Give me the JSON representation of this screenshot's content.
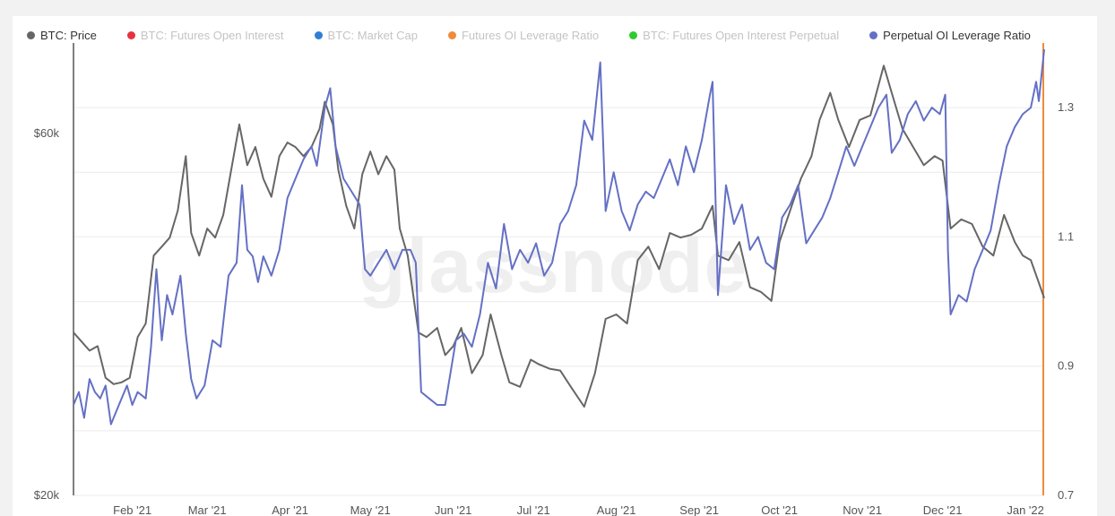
{
  "watermark": "glassnode",
  "legend": [
    {
      "label": "BTC: Price",
      "color": "#666666",
      "active": true
    },
    {
      "label": "BTC: Futures Open Interest",
      "color": "#e8313f",
      "active": false
    },
    {
      "label": "BTC: Market Cap",
      "color": "#2f7ed8",
      "active": false
    },
    {
      "label": "Futures OI Leverage Ratio",
      "color": "#f08a3c",
      "active": false
    },
    {
      "label": "BTC: Futures Open Interest Perpetual",
      "color": "#2ecc2e",
      "active": false
    },
    {
      "label": "Perpetual OI Leverage Ratio",
      "color": "#6470c4",
      "active": true
    }
  ],
  "chart_data": {
    "type": "line",
    "title": "",
    "x_ticks": [
      "Feb '21",
      "Mar '21",
      "Apr '21",
      "May '21",
      "Jun '21",
      "Jul '21",
      "Aug '21",
      "Sep '21",
      "Oct '21",
      "Nov '21",
      "Dec '21",
      "Jan '22"
    ],
    "x_range": [
      "2021-01-10",
      "2022-01-08"
    ],
    "left_axis": {
      "ticks": [
        "$20k",
        "$60k"
      ],
      "range": [
        20000,
        70000
      ],
      "scale": "linear",
      "series": "BTC: Price"
    },
    "right_axis": {
      "ticks": [
        "0.7",
        "0.9",
        "1.1",
        "1.3"
      ],
      "range": [
        0.7,
        1.4
      ],
      "scale": "linear",
      "series": "Perpetual OI Leverage Ratio"
    },
    "grid": true,
    "legend_position": "top",
    "series": [
      {
        "name": "BTC: Price",
        "color": "#666666",
        "axis": "left",
        "points": [
          [
            "2021-01-10",
            38000
          ],
          [
            "2021-01-13",
            37000
          ],
          [
            "2021-01-16",
            36000
          ],
          [
            "2021-01-19",
            36500
          ],
          [
            "2021-01-22",
            33000
          ],
          [
            "2021-01-25",
            32300
          ],
          [
            "2021-01-28",
            32500
          ],
          [
            "2021-01-31",
            33000
          ],
          [
            "2021-02-03",
            37500
          ],
          [
            "2021-02-06",
            39000
          ],
          [
            "2021-02-09",
            46500
          ],
          [
            "2021-02-12",
            47500
          ],
          [
            "2021-02-15",
            48500
          ],
          [
            "2021-02-18",
            51500
          ],
          [
            "2021-02-21",
            57500
          ],
          [
            "2021-02-23",
            49000
          ],
          [
            "2021-02-26",
            46500
          ],
          [
            "2021-03-01",
            49500
          ],
          [
            "2021-03-04",
            48500
          ],
          [
            "2021-03-07",
            51000
          ],
          [
            "2021-03-10",
            56000
          ],
          [
            "2021-03-13",
            61000
          ],
          [
            "2021-03-16",
            56500
          ],
          [
            "2021-03-19",
            58500
          ],
          [
            "2021-03-22",
            55000
          ],
          [
            "2021-03-25",
            53000
          ],
          [
            "2021-03-28",
            57500
          ],
          [
            "2021-03-31",
            59000
          ],
          [
            "2021-04-03",
            58500
          ],
          [
            "2021-04-06",
            57500
          ],
          [
            "2021-04-09",
            58500
          ],
          [
            "2021-04-12",
            60500
          ],
          [
            "2021-04-14",
            63500
          ],
          [
            "2021-04-17",
            61000
          ],
          [
            "2021-04-19",
            56000
          ],
          [
            "2021-04-22",
            52000
          ],
          [
            "2021-04-25",
            49500
          ],
          [
            "2021-04-28",
            55500
          ],
          [
            "2021-05-01",
            58000
          ],
          [
            "2021-05-04",
            55500
          ],
          [
            "2021-05-07",
            57500
          ],
          [
            "2021-05-10",
            56000
          ],
          [
            "2021-05-12",
            49500
          ],
          [
            "2021-05-15",
            46500
          ],
          [
            "2021-05-19",
            38000
          ],
          [
            "2021-05-22",
            37500
          ],
          [
            "2021-05-26",
            38500
          ],
          [
            "2021-05-29",
            35500
          ],
          [
            "2021-06-01",
            36500
          ],
          [
            "2021-06-04",
            38500
          ],
          [
            "2021-06-08",
            33500
          ],
          [
            "2021-06-12",
            35500
          ],
          [
            "2021-06-15",
            40000
          ],
          [
            "2021-06-19",
            35500
          ],
          [
            "2021-06-22",
            32500
          ],
          [
            "2021-06-26",
            32000
          ],
          [
            "2021-06-30",
            35000
          ],
          [
            "2021-07-03",
            34500
          ],
          [
            "2021-07-07",
            34000
          ],
          [
            "2021-07-11",
            33800
          ],
          [
            "2021-07-15",
            32000
          ],
          [
            "2021-07-20",
            29800
          ],
          [
            "2021-07-24",
            33500
          ],
          [
            "2021-07-28",
            39500
          ],
          [
            "2021-08-01",
            40000
          ],
          [
            "2021-08-05",
            39000
          ],
          [
            "2021-08-09",
            46000
          ],
          [
            "2021-08-13",
            47500
          ],
          [
            "2021-08-17",
            45000
          ],
          [
            "2021-08-21",
            49000
          ],
          [
            "2021-08-25",
            48500
          ],
          [
            "2021-08-29",
            48800
          ],
          [
            "2021-09-02",
            49500
          ],
          [
            "2021-09-06",
            52000
          ],
          [
            "2021-09-08",
            46500
          ],
          [
            "2021-09-12",
            46000
          ],
          [
            "2021-09-16",
            48000
          ],
          [
            "2021-09-20",
            43000
          ],
          [
            "2021-09-24",
            42500
          ],
          [
            "2021-09-28",
            41500
          ],
          [
            "2021-10-01",
            48000
          ],
          [
            "2021-10-05",
            51500
          ],
          [
            "2021-10-09",
            55000
          ],
          [
            "2021-10-13",
            57500
          ],
          [
            "2021-10-16",
            61500
          ],
          [
            "2021-10-20",
            64500
          ],
          [
            "2021-10-23",
            61500
          ],
          [
            "2021-10-27",
            58500
          ],
          [
            "2021-10-31",
            61500
          ],
          [
            "2021-11-04",
            62000
          ],
          [
            "2021-11-09",
            67500
          ],
          [
            "2021-11-12",
            64500
          ],
          [
            "2021-11-16",
            60500
          ],
          [
            "2021-11-20",
            58500
          ],
          [
            "2021-11-24",
            56500
          ],
          [
            "2021-11-28",
            57500
          ],
          [
            "2021-12-01",
            57000
          ],
          [
            "2021-12-04",
            49500
          ],
          [
            "2021-12-08",
            50500
          ],
          [
            "2021-12-12",
            50000
          ],
          [
            "2021-12-16",
            47500
          ],
          [
            "2021-12-20",
            46500
          ],
          [
            "2021-12-24",
            51000
          ],
          [
            "2021-12-28",
            48000
          ],
          [
            "2021-12-31",
            46500
          ],
          [
            "2022-01-03",
            46000
          ],
          [
            "2022-01-06",
            43500
          ],
          [
            "2022-01-08",
            41800
          ]
        ]
      },
      {
        "name": "Perpetual OI Leverage Ratio",
        "color": "#6470c4",
        "axis": "right",
        "points": [
          [
            "2021-01-10",
            0.84
          ],
          [
            "2021-01-12",
            0.86
          ],
          [
            "2021-01-14",
            0.82
          ],
          [
            "2021-01-16",
            0.88
          ],
          [
            "2021-01-18",
            0.86
          ],
          [
            "2021-01-20",
            0.85
          ],
          [
            "2021-01-22",
            0.87
          ],
          [
            "2021-01-24",
            0.81
          ],
          [
            "2021-01-26",
            0.83
          ],
          [
            "2021-01-28",
            0.85
          ],
          [
            "2021-01-30",
            0.87
          ],
          [
            "2021-02-01",
            0.84
          ],
          [
            "2021-02-03",
            0.86
          ],
          [
            "2021-02-06",
            0.85
          ],
          [
            "2021-02-08",
            0.93
          ],
          [
            "2021-02-10",
            1.05
          ],
          [
            "2021-02-12",
            0.94
          ],
          [
            "2021-02-14",
            1.01
          ],
          [
            "2021-02-16",
            0.98
          ],
          [
            "2021-02-19",
            1.04
          ],
          [
            "2021-02-21",
            0.95
          ],
          [
            "2021-02-23",
            0.88
          ],
          [
            "2021-02-25",
            0.85
          ],
          [
            "2021-02-28",
            0.87
          ],
          [
            "2021-03-03",
            0.94
          ],
          [
            "2021-03-06",
            0.93
          ],
          [
            "2021-03-09",
            1.04
          ],
          [
            "2021-03-12",
            1.06
          ],
          [
            "2021-03-14",
            1.18
          ],
          [
            "2021-03-16",
            1.08
          ],
          [
            "2021-03-18",
            1.07
          ],
          [
            "2021-03-20",
            1.03
          ],
          [
            "2021-03-22",
            1.07
          ],
          [
            "2021-03-25",
            1.04
          ],
          [
            "2021-03-28",
            1.08
          ],
          [
            "2021-03-31",
            1.16
          ],
          [
            "2021-04-03",
            1.19
          ],
          [
            "2021-04-06",
            1.22
          ],
          [
            "2021-04-09",
            1.24
          ],
          [
            "2021-04-11",
            1.21
          ],
          [
            "2021-04-14",
            1.3
          ],
          [
            "2021-04-16",
            1.33
          ],
          [
            "2021-04-18",
            1.24
          ],
          [
            "2021-04-21",
            1.19
          ],
          [
            "2021-04-24",
            1.17
          ],
          [
            "2021-04-27",
            1.15
          ],
          [
            "2021-04-29",
            1.05
          ],
          [
            "2021-05-01",
            1.04
          ],
          [
            "2021-05-04",
            1.06
          ],
          [
            "2021-05-07",
            1.08
          ],
          [
            "2021-05-10",
            1.05
          ],
          [
            "2021-05-13",
            1.08
          ],
          [
            "2021-05-16",
            1.08
          ],
          [
            "2021-05-18",
            1.06
          ],
          [
            "2021-05-20",
            0.86
          ],
          [
            "2021-05-23",
            0.85
          ],
          [
            "2021-05-26",
            0.84
          ],
          [
            "2021-05-29",
            0.84
          ],
          [
            "2021-06-02",
            0.94
          ],
          [
            "2021-06-05",
            0.95
          ],
          [
            "2021-06-08",
            0.93
          ],
          [
            "2021-06-11",
            0.98
          ],
          [
            "2021-06-14",
            1.06
          ],
          [
            "2021-06-17",
            1.02
          ],
          [
            "2021-06-20",
            1.12
          ],
          [
            "2021-06-23",
            1.05
          ],
          [
            "2021-06-26",
            1.08
          ],
          [
            "2021-06-29",
            1.06
          ],
          [
            "2021-07-02",
            1.09
          ],
          [
            "2021-07-05",
            1.04
          ],
          [
            "2021-07-08",
            1.06
          ],
          [
            "2021-07-11",
            1.12
          ],
          [
            "2021-07-14",
            1.14
          ],
          [
            "2021-07-17",
            1.18
          ],
          [
            "2021-07-20",
            1.28
          ],
          [
            "2021-07-23",
            1.25
          ],
          [
            "2021-07-26",
            1.37
          ],
          [
            "2021-07-28",
            1.14
          ],
          [
            "2021-07-31",
            1.2
          ],
          [
            "2021-08-03",
            1.14
          ],
          [
            "2021-08-06",
            1.11
          ],
          [
            "2021-08-09",
            1.15
          ],
          [
            "2021-08-12",
            1.17
          ],
          [
            "2021-08-15",
            1.16
          ],
          [
            "2021-08-18",
            1.19
          ],
          [
            "2021-08-21",
            1.22
          ],
          [
            "2021-08-24",
            1.18
          ],
          [
            "2021-08-27",
            1.24
          ],
          [
            "2021-08-30",
            1.2
          ],
          [
            "2021-09-02",
            1.25
          ],
          [
            "2021-09-05",
            1.32
          ],
          [
            "2021-09-06",
            1.34
          ],
          [
            "2021-09-08",
            1.01
          ],
          [
            "2021-09-11",
            1.18
          ],
          [
            "2021-09-14",
            1.12
          ],
          [
            "2021-09-17",
            1.15
          ],
          [
            "2021-09-20",
            1.08
          ],
          [
            "2021-09-23",
            1.1
          ],
          [
            "2021-09-26",
            1.06
          ],
          [
            "2021-09-29",
            1.05
          ],
          [
            "2021-10-02",
            1.13
          ],
          [
            "2021-10-05",
            1.15
          ],
          [
            "2021-10-08",
            1.18
          ],
          [
            "2021-10-11",
            1.09
          ],
          [
            "2021-10-14",
            1.11
          ],
          [
            "2021-10-17",
            1.13
          ],
          [
            "2021-10-20",
            1.16
          ],
          [
            "2021-10-23",
            1.2
          ],
          [
            "2021-10-26",
            1.24
          ],
          [
            "2021-10-29",
            1.21
          ],
          [
            "2021-11-01",
            1.24
          ],
          [
            "2021-11-04",
            1.27
          ],
          [
            "2021-11-07",
            1.3
          ],
          [
            "2021-11-10",
            1.32
          ],
          [
            "2021-11-12",
            1.23
          ],
          [
            "2021-11-15",
            1.25
          ],
          [
            "2021-11-18",
            1.29
          ],
          [
            "2021-11-21",
            1.31
          ],
          [
            "2021-11-24",
            1.28
          ],
          [
            "2021-11-27",
            1.3
          ],
          [
            "2021-11-30",
            1.29
          ],
          [
            "2021-12-02",
            1.32
          ],
          [
            "2021-12-03",
            1.08
          ],
          [
            "2021-12-04",
            0.98
          ],
          [
            "2021-12-07",
            1.01
          ],
          [
            "2021-12-10",
            1.0
          ],
          [
            "2021-12-13",
            1.05
          ],
          [
            "2021-12-16",
            1.08
          ],
          [
            "2021-12-19",
            1.11
          ],
          [
            "2021-12-22",
            1.18
          ],
          [
            "2021-12-25",
            1.24
          ],
          [
            "2021-12-28",
            1.27
          ],
          [
            "2021-12-31",
            1.29
          ],
          [
            "2022-01-03",
            1.3
          ],
          [
            "2022-01-05",
            1.34
          ],
          [
            "2022-01-06",
            1.31
          ],
          [
            "2022-01-08",
            1.39
          ]
        ]
      }
    ]
  }
}
